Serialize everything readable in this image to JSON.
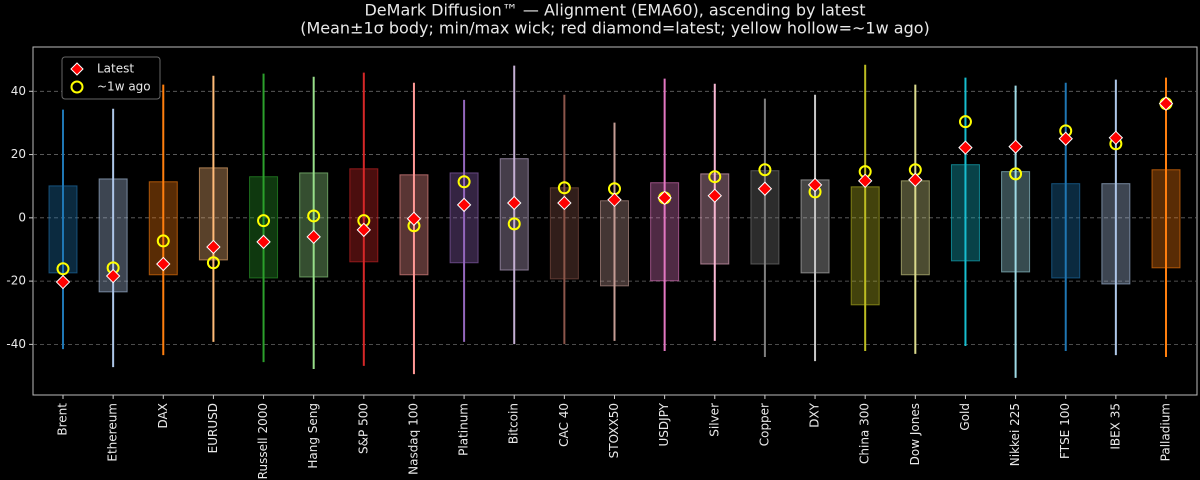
{
  "chart_data": {
    "type": "box",
    "title": "DeMark Diffusion™ — Alignment (EMA60), ascending by latest",
    "subtitle": "(Mean±1σ body; min/max wick; red diamond=latest; yellow hollow=~1w ago)",
    "categories": [
      "Brent",
      "Ethereum",
      "DAX",
      "EURUSD",
      "Russell 2000",
      "Hang Seng",
      "S&P 500",
      "Nasdaq 100",
      "Platinum",
      "Bitcoin",
      "CAC 40",
      "STOXX50",
      "USDJPY",
      "Silver",
      "Copper",
      "DXY",
      "China 300",
      "Dow Jones",
      "Gold",
      "Nikkei 225",
      "FTSE 100",
      "IBEX 35",
      "Palladium"
    ],
    "colors": [
      "#1f77b4",
      "#aec7e8",
      "#ff7f0e",
      "#ffbb78",
      "#2ca02c",
      "#98df8a",
      "#d62728",
      "#ff9896",
      "#9467bd",
      "#c5b0d5",
      "#8c564b",
      "#c49c94",
      "#e377c2",
      "#f7b6d2",
      "#7f7f7f",
      "#c7c7c7",
      "#bcbd22",
      "#dbdb8d",
      "#17becf",
      "#9edae5",
      "#1f77b4",
      "#aec7e8",
      "#ff7f0e"
    ],
    "wick_min": [
      -41.5,
      -47.2,
      -43.4,
      -39.2,
      -45.6,
      -47.8,
      -46.8,
      -49.4,
      -39.2,
      -39.9,
      -39.9,
      -38.9,
      -42.1,
      -38.9,
      -44,
      -45.3,
      -42.1,
      -43,
      -40.5,
      -50.6,
      -42.1,
      -43.4,
      -44
    ],
    "wick_max": [
      34.2,
      34.5,
      42.1,
      44.9,
      45.6,
      44.6,
      45.9,
      42.7,
      37.3,
      48.1,
      38.9,
      30.1,
      44,
      42.4,
      37.7,
      38.9,
      48.4,
      42.1,
      44.3,
      41.8,
      42.7,
      43.7,
      44.3
    ],
    "body_low": [
      -17.4,
      -23.4,
      -18,
      -13.3,
      -19,
      -18.7,
      -13.9,
      -18,
      -14.2,
      -16.5,
      -19.3,
      -21.5,
      -19.9,
      -14.6,
      -14.6,
      -17.4,
      -27.5,
      -18,
      -13.6,
      -17.1,
      -19,
      -20.9,
      -15.8
    ],
    "body_high": [
      10.1,
      12.3,
      11.4,
      15.8,
      13,
      14.2,
      15.5,
      13.6,
      14.2,
      18.7,
      9.5,
      5.4,
      11.1,
      13.9,
      14.9,
      12,
      9.8,
      11.7,
      16.8,
      14.6,
      10.8,
      10.8,
      15.2
    ],
    "series": [
      {
        "name": "Latest",
        "color": "#ff0000",
        "values": [
          -20.3,
          -18.4,
          -14.6,
          -9.2,
          -7.6,
          -6,
          -3.8,
          -0.3,
          4.1,
          4.7,
          4.7,
          5.7,
          6.3,
          7,
          9.2,
          10.4,
          11.7,
          12,
          22.2,
          22.5,
          25,
          25.3,
          36.1
        ]
      },
      {
        "name": "~1w ago",
        "color": "#ffff00",
        "values": [
          -16.1,
          -15.8,
          -7.3,
          -14.2,
          -0.9,
          0.6,
          -0.9,
          -2.5,
          11.4,
          -1.9,
          9.5,
          9.2,
          6.3,
          13,
          15.2,
          8.2,
          14.6,
          15.2,
          30.4,
          13.9,
          27.5,
          23.4,
          36.1
        ]
      }
    ],
    "ylim": [
      -56,
      54
    ],
    "yticks": [
      -40,
      -20,
      0,
      20,
      40
    ],
    "grid": true,
    "legend": "upper left"
  }
}
